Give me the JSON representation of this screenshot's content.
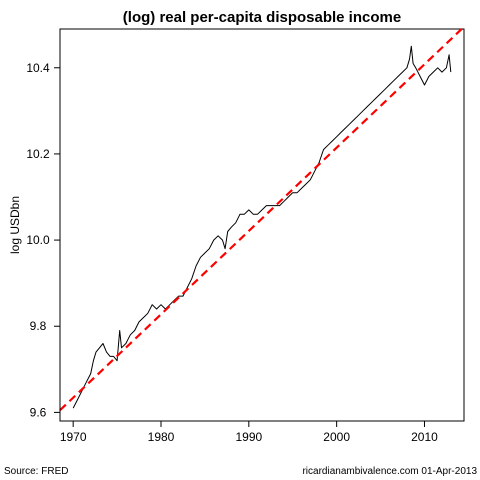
{
  "chart_data": {
    "type": "line",
    "title": "(log) real per-capita disposable income",
    "xlabel": "",
    "ylabel": "log USDbn",
    "xlim": [
      1968.5,
      2014.5
    ],
    "ylim": [
      9.58,
      10.49
    ],
    "x_ticks": [
      1970,
      1980,
      1990,
      2000,
      2010
    ],
    "y_ticks": [
      9.6,
      9.8,
      10.0,
      10.2,
      10.4
    ],
    "grid": false,
    "legend": "none",
    "series": [
      {
        "style": "solid",
        "color": "#000000",
        "points": [
          [
            1970.0,
            9.61
          ],
          [
            1970.5,
            9.63
          ],
          [
            1971.0,
            9.65
          ],
          [
            1971.5,
            9.67
          ],
          [
            1972.0,
            9.69
          ],
          [
            1972.3,
            9.72
          ],
          [
            1972.6,
            9.74
          ],
          [
            1973.0,
            9.75
          ],
          [
            1973.4,
            9.76
          ],
          [
            1973.8,
            9.74
          ],
          [
            1974.2,
            9.73
          ],
          [
            1974.6,
            9.73
          ],
          [
            1975.0,
            9.72
          ],
          [
            1975.3,
            9.79
          ],
          [
            1975.5,
            9.75
          ],
          [
            1976.0,
            9.76
          ],
          [
            1976.5,
            9.78
          ],
          [
            1977.0,
            9.79
          ],
          [
            1977.5,
            9.81
          ],
          [
            1978.0,
            9.82
          ],
          [
            1978.5,
            9.83
          ],
          [
            1979.0,
            9.85
          ],
          [
            1979.5,
            9.84
          ],
          [
            1980.0,
            9.85
          ],
          [
            1980.5,
            9.84
          ],
          [
            1981.0,
            9.85
          ],
          [
            1981.5,
            9.86
          ],
          [
            1982.0,
            9.87
          ],
          [
            1982.5,
            9.87
          ],
          [
            1983.0,
            9.89
          ],
          [
            1983.5,
            9.91
          ],
          [
            1984.0,
            9.94
          ],
          [
            1984.5,
            9.96
          ],
          [
            1985.0,
            9.97
          ],
          [
            1985.5,
            9.98
          ],
          [
            1986.0,
            10.0
          ],
          [
            1986.5,
            10.01
          ],
          [
            1987.0,
            10.0
          ],
          [
            1987.3,
            9.98
          ],
          [
            1987.6,
            10.02
          ],
          [
            1988.0,
            10.03
          ],
          [
            1988.5,
            10.04
          ],
          [
            1989.0,
            10.06
          ],
          [
            1989.5,
            10.06
          ],
          [
            1990.0,
            10.07
          ],
          [
            1990.5,
            10.06
          ],
          [
            1991.0,
            10.06
          ],
          [
            1991.5,
            10.07
          ],
          [
            1992.0,
            10.08
          ],
          [
            1992.5,
            10.08
          ],
          [
            1993.0,
            10.08
          ],
          [
            1993.5,
            10.08
          ],
          [
            1994.0,
            10.09
          ],
          [
            1994.5,
            10.1
          ],
          [
            1995.0,
            10.11
          ],
          [
            1995.5,
            10.11
          ],
          [
            1996.0,
            10.12
          ],
          [
            1996.5,
            10.13
          ],
          [
            1997.0,
            10.14
          ],
          [
            1997.5,
            10.16
          ],
          [
            1998.0,
            10.18
          ],
          [
            1998.5,
            10.21
          ],
          [
            1999.0,
            10.22
          ],
          [
            1999.5,
            10.23
          ],
          [
            2000.0,
            10.24
          ],
          [
            2000.5,
            10.25
          ],
          [
            2001.0,
            10.26
          ],
          [
            2001.5,
            10.27
          ],
          [
            2002.0,
            10.28
          ],
          [
            2002.5,
            10.29
          ],
          [
            2003.0,
            10.3
          ],
          [
            2003.5,
            10.31
          ],
          [
            2004.0,
            10.32
          ],
          [
            2004.5,
            10.33
          ],
          [
            2005.0,
            10.34
          ],
          [
            2005.5,
            10.35
          ],
          [
            2006.0,
            10.36
          ],
          [
            2006.5,
            10.37
          ],
          [
            2007.0,
            10.38
          ],
          [
            2007.5,
            10.39
          ],
          [
            2008.0,
            10.4
          ],
          [
            2008.3,
            10.42
          ],
          [
            2008.5,
            10.45
          ],
          [
            2008.7,
            10.41
          ],
          [
            2009.0,
            10.4
          ],
          [
            2009.5,
            10.38
          ],
          [
            2010.0,
            10.36
          ],
          [
            2010.5,
            10.38
          ],
          [
            2011.0,
            10.39
          ],
          [
            2011.5,
            10.4
          ],
          [
            2012.0,
            10.39
          ],
          [
            2012.5,
            10.4
          ],
          [
            2012.8,
            10.43
          ],
          [
            2013.0,
            10.39
          ]
        ]
      },
      {
        "style": "dashed",
        "color": "#ff0000",
        "points": [
          [
            1968.5,
            9.605
          ],
          [
            2014.5,
            10.495
          ]
        ]
      }
    ]
  },
  "footer": {
    "source": "Source: FRED",
    "credit": "ricardianambivalence.com    01-Apr-2013"
  }
}
